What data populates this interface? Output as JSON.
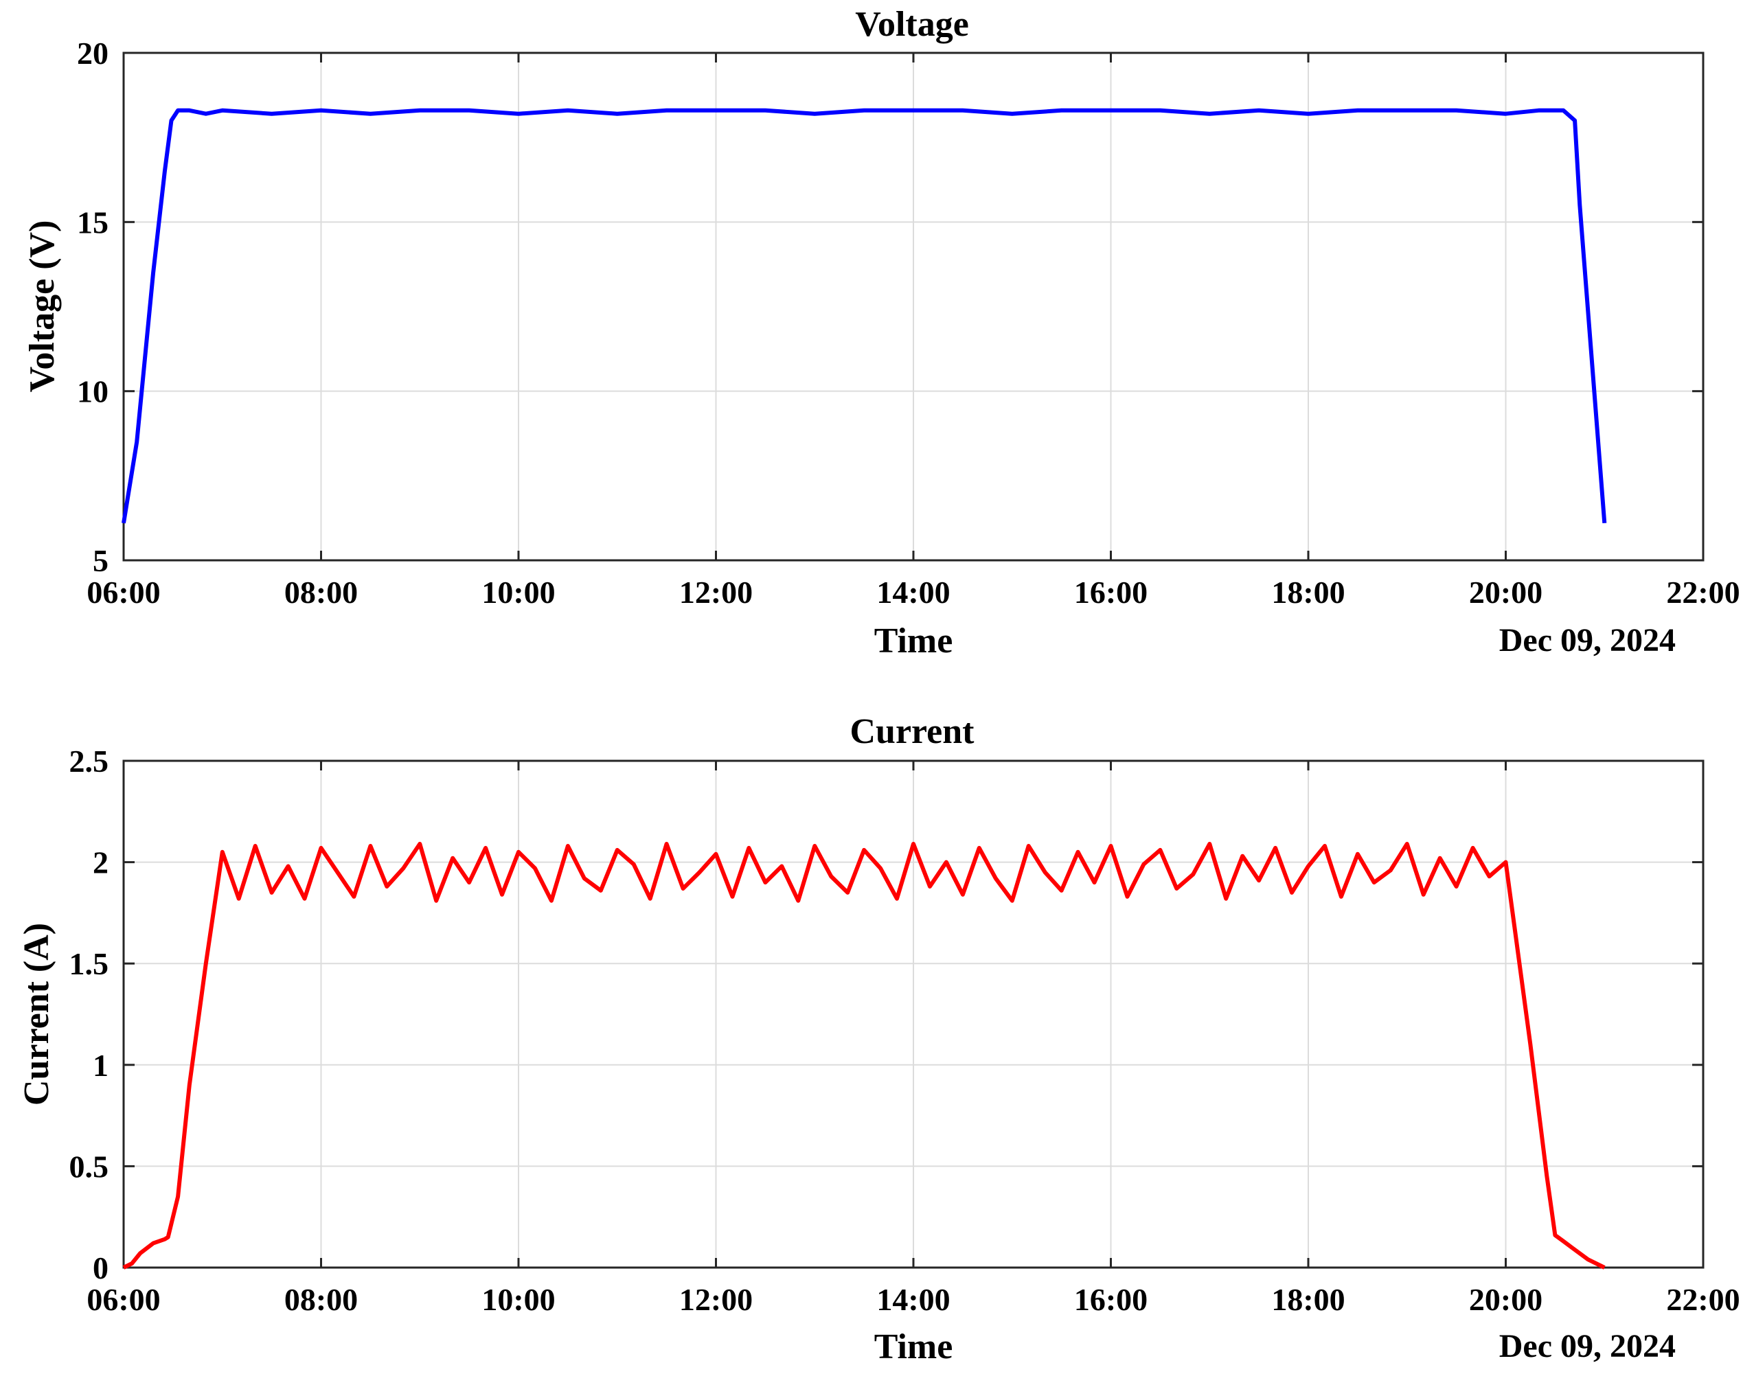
{
  "chart_data": [
    {
      "type": "line",
      "title": "Voltage",
      "xlabel": "Time",
      "ylabel": "Voltage (V)",
      "date_label": "Dec 09, 2024",
      "xlim": [
        "06:00",
        "22:00"
      ],
      "ylim": [
        5,
        20
      ],
      "x_ticks": [
        "06:00",
        "08:00",
        "10:00",
        "12:00",
        "14:00",
        "16:00",
        "18:00",
        "20:00",
        "22:00"
      ],
      "y_ticks": [
        "5",
        "10",
        "15",
        "20"
      ],
      "grid": true,
      "color": "#0000ff",
      "series": [
        {
          "x": [
            "06:00",
            "06:08",
            "06:18",
            "06:25",
            "06:29",
            "06:33",
            "06:40",
            "06:50",
            "07:00",
            "07:30",
            "08:00",
            "08:30",
            "09:00",
            "09:30",
            "10:00",
            "10:30",
            "11:00",
            "11:30",
            "12:00",
            "12:30",
            "13:00",
            "13:30",
            "14:00",
            "14:30",
            "15:00",
            "15:30",
            "16:00",
            "16:30",
            "17:00",
            "17:30",
            "18:00",
            "18:30",
            "19:00",
            "19:30",
            "20:00",
            "20:20",
            "20:35",
            "20:42",
            "20:45",
            "21:00"
          ],
          "y": [
            6.1,
            8.5,
            13.5,
            16.5,
            18.0,
            18.3,
            18.3,
            18.2,
            18.3,
            18.2,
            18.3,
            18.2,
            18.3,
            18.3,
            18.2,
            18.3,
            18.2,
            18.3,
            18.3,
            18.3,
            18.2,
            18.3,
            18.3,
            18.3,
            18.2,
            18.3,
            18.3,
            18.3,
            18.2,
            18.3,
            18.2,
            18.3,
            18.3,
            18.3,
            18.2,
            18.3,
            18.3,
            18.0,
            15.5,
            6.1
          ]
        }
      ]
    },
    {
      "type": "line",
      "title": "Current",
      "xlabel": "Time",
      "ylabel": "Current (A)",
      "date_label": "Dec 09, 2024",
      "xlim": [
        "06:00",
        "22:00"
      ],
      "ylim": [
        0,
        2.5
      ],
      "x_ticks": [
        "06:00",
        "08:00",
        "10:00",
        "12:00",
        "14:00",
        "16:00",
        "18:00",
        "20:00",
        "22:00"
      ],
      "y_ticks": [
        "0",
        "0.5",
        "1",
        "1.5",
        "2",
        "2.5"
      ],
      "grid": true,
      "color": "#ff0000",
      "series": [
        {
          "x": [
            "06:00",
            "06:05",
            "06:10",
            "06:18",
            "06:25",
            "06:27",
            "06:33",
            "06:40",
            "06:50",
            "07:00",
            "07:10",
            "07:20",
            "07:30",
            "07:40",
            "07:50",
            "08:00",
            "08:10",
            "08:20",
            "08:30",
            "08:40",
            "08:50",
            "09:00",
            "09:10",
            "09:20",
            "09:30",
            "09:40",
            "09:50",
            "10:00",
            "10:10",
            "10:20",
            "10:30",
            "10:40",
            "10:50",
            "11:00",
            "11:10",
            "11:20",
            "11:30",
            "11:40",
            "11:50",
            "12:00",
            "12:10",
            "12:20",
            "12:30",
            "12:40",
            "12:50",
            "13:00",
            "13:10",
            "13:20",
            "13:30",
            "13:40",
            "13:50",
            "14:00",
            "14:10",
            "14:20",
            "14:30",
            "14:40",
            "14:50",
            "15:00",
            "15:10",
            "15:20",
            "15:30",
            "15:40",
            "15:50",
            "16:00",
            "16:10",
            "16:20",
            "16:30",
            "16:40",
            "16:50",
            "17:00",
            "17:10",
            "17:20",
            "17:30",
            "17:40",
            "17:50",
            "18:00",
            "18:10",
            "18:20",
            "18:30",
            "18:40",
            "18:50",
            "19:00",
            "19:10",
            "19:20",
            "19:30",
            "19:40",
            "19:50",
            "20:00",
            "20:05",
            "20:15",
            "20:25",
            "20:30",
            "20:35",
            "20:40",
            "20:50",
            "21:00"
          ],
          "y": [
            0.0,
            0.02,
            0.07,
            0.12,
            0.14,
            0.15,
            0.35,
            0.9,
            1.5,
            2.05,
            1.82,
            2.08,
            1.85,
            1.98,
            1.82,
            2.07,
            1.95,
            1.83,
            2.08,
            1.88,
            1.97,
            2.09,
            1.81,
            2.02,
            1.9,
            2.07,
            1.84,
            2.05,
            1.97,
            1.81,
            2.08,
            1.92,
            1.86,
            2.06,
            1.99,
            1.82,
            2.09,
            1.87,
            1.95,
            2.04,
            1.83,
            2.07,
            1.9,
            1.98,
            1.81,
            2.08,
            1.93,
            1.85,
            2.06,
            1.97,
            1.82,
            2.09,
            1.88,
            2.0,
            1.84,
            2.07,
            1.92,
            1.81,
            2.08,
            1.95,
            1.86,
            2.05,
            1.9,
            2.08,
            1.83,
            1.99,
            2.06,
            1.87,
            1.94,
            2.09,
            1.82,
            2.03,
            1.91,
            2.07,
            1.85,
            1.98,
            2.08,
            1.83,
            2.04,
            1.9,
            1.96,
            2.09,
            1.84,
            2.02,
            1.88,
            2.07,
            1.93,
            2.0,
            1.7,
            1.1,
            0.45,
            0.16,
            0.13,
            0.1,
            0.04,
            0.0
          ]
        }
      ]
    }
  ]
}
